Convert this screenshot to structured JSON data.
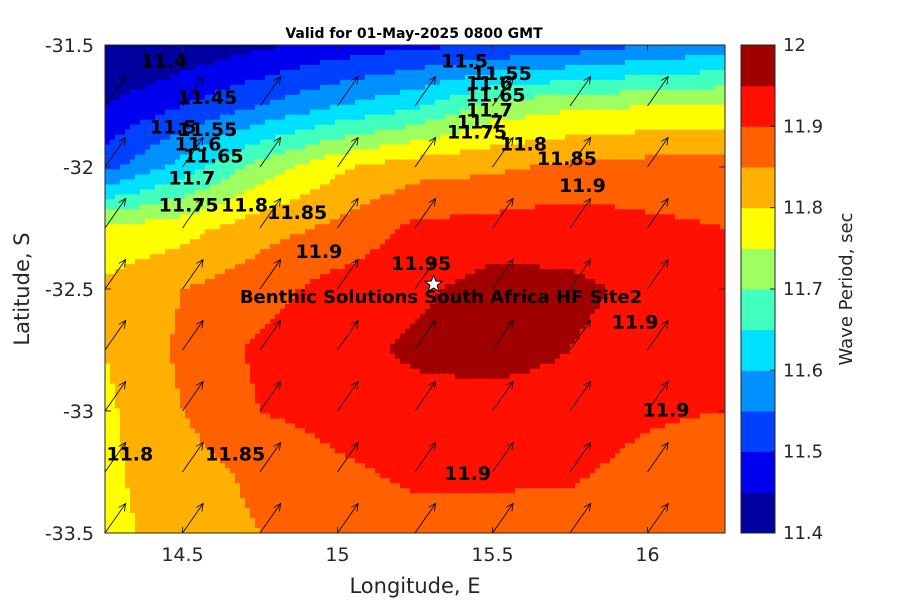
{
  "chart_data": {
    "type": "filled-contour",
    "title": "Valid for 01-May-2025 0800 GMT",
    "xlabel": "Longitude, E",
    "ylabel": "Latitude, S",
    "xlim": [
      14.25,
      16.25
    ],
    "ylim": [
      -33.5,
      -31.5
    ],
    "x_ticks": [
      14.5,
      15,
      15.5,
      16
    ],
    "x_tick_labels": [
      "14.5",
      "15",
      "15.5",
      "16"
    ],
    "y_ticks": [
      -31.5,
      -32,
      -32.5,
      -33,
      -33.5
    ],
    "y_tick_labels": [
      "-31.5",
      "-32",
      "-32.5",
      "-33",
      "-33.5"
    ],
    "colorbar": {
      "label": "Wave Period, sec",
      "range": [
        11.4,
        12.0
      ],
      "ticks": [
        "11.4",
        "11.5",
        "11.6",
        "11.7",
        "11.8",
        "11.9",
        "12"
      ],
      "level_step": 0.05,
      "colors": [
        "#00009f",
        "#0000ef",
        "#0040ff",
        "#0090ff",
        "#00e0ff",
        "#40ffbf",
        "#a0ff60",
        "#ffff00",
        "#ffb000",
        "#ff6000",
        "#ff1000",
        "#a00000"
      ]
    },
    "grid_lon": [
      14.25,
      14.5,
      14.75,
      15.0,
      15.25,
      15.5,
      15.75,
      16.0,
      16.25
    ],
    "grid_lat": [
      -31.5,
      -31.75,
      -32.0,
      -32.25,
      -32.5,
      -32.75,
      -33.0,
      -33.25,
      -33.5
    ],
    "wave_period": [
      [
        11.38,
        11.41,
        11.44,
        11.47,
        11.49,
        11.5,
        11.52,
        11.55,
        11.57
      ],
      [
        11.45,
        11.5,
        11.55,
        11.6,
        11.64,
        11.72,
        11.74,
        11.75,
        11.76
      ],
      [
        11.53,
        11.62,
        11.72,
        11.79,
        11.83,
        11.84,
        11.86,
        11.87,
        11.87
      ],
      [
        11.76,
        11.78,
        11.83,
        11.86,
        11.91,
        11.92,
        11.93,
        11.91,
        11.9
      ],
      [
        11.81,
        11.85,
        11.88,
        11.92,
        11.94,
        11.97,
        11.96,
        11.94,
        11.91
      ],
      [
        11.8,
        11.86,
        11.91,
        11.93,
        11.96,
        11.97,
        11.95,
        11.93,
        11.91
      ],
      [
        11.79,
        11.85,
        11.9,
        11.92,
        11.93,
        11.93,
        11.93,
        11.91,
        11.9
      ],
      [
        11.79,
        11.83,
        11.86,
        11.89,
        11.91,
        11.91,
        11.91,
        11.88,
        11.86
      ],
      [
        11.78,
        11.83,
        11.85,
        11.87,
        11.88,
        11.88,
        11.87,
        11.86,
        11.86
      ]
    ],
    "vector_direction_deg": 35,
    "contour_labels": [
      {
        "text": "11.4",
        "lon": 14.44,
        "lat": -31.57
      },
      {
        "text": "11.45",
        "lon": 14.58,
        "lat": -31.72
      },
      {
        "text": "11.5",
        "lon": 14.47,
        "lat": -31.84
      },
      {
        "text": "11.55",
        "lon": 14.58,
        "lat": -31.85
      },
      {
        "text": "11.6",
        "lon": 14.55,
        "lat": -31.91
      },
      {
        "text": "11.65",
        "lon": 14.6,
        "lat": -31.96
      },
      {
        "text": "11.7",
        "lon": 14.53,
        "lat": -32.05
      },
      {
        "text": "11.75",
        "lon": 14.52,
        "lat": -32.16
      },
      {
        "text": "11.8",
        "lon": 14.7,
        "lat": -32.16
      },
      {
        "text": "11.85",
        "lon": 14.87,
        "lat": -32.19
      },
      {
        "text": "11.9",
        "lon": 14.94,
        "lat": -32.35
      },
      {
        "text": "11.95",
        "lon": 15.27,
        "lat": -32.4
      },
      {
        "text": "11.5",
        "lon": 15.41,
        "lat": -31.57
      },
      {
        "text": "11.55",
        "lon": 15.53,
        "lat": -31.62
      },
      {
        "text": "11.6",
        "lon": 15.49,
        "lat": -31.66
      },
      {
        "text": "11.65",
        "lon": 15.51,
        "lat": -31.71
      },
      {
        "text": "11.7",
        "lon": 15.49,
        "lat": -31.77
      },
      {
        "text": "11.7",
        "lon": 15.46,
        "lat": -31.82
      },
      {
        "text": "11.75",
        "lon": 15.45,
        "lat": -31.86
      },
      {
        "text": "11.8",
        "lon": 15.6,
        "lat": -31.91
      },
      {
        "text": "11.85",
        "lon": 15.74,
        "lat": -31.97
      },
      {
        "text": "11.9",
        "lon": 15.79,
        "lat": -32.08
      },
      {
        "text": "11.9",
        "lon": 15.96,
        "lat": -32.64
      },
      {
        "text": "11.9",
        "lon": 16.06,
        "lat": -33.0
      },
      {
        "text": "11.9",
        "lon": 15.42,
        "lat": -33.26
      },
      {
        "text": "11.85",
        "lon": 14.67,
        "lat": -33.18
      },
      {
        "text": "11.8",
        "lon": 14.33,
        "lat": -33.18
      }
    ],
    "site": {
      "label": "Benthic Solutions South Africa HF Site2",
      "lon": 15.31,
      "lat": -32.48
    }
  }
}
